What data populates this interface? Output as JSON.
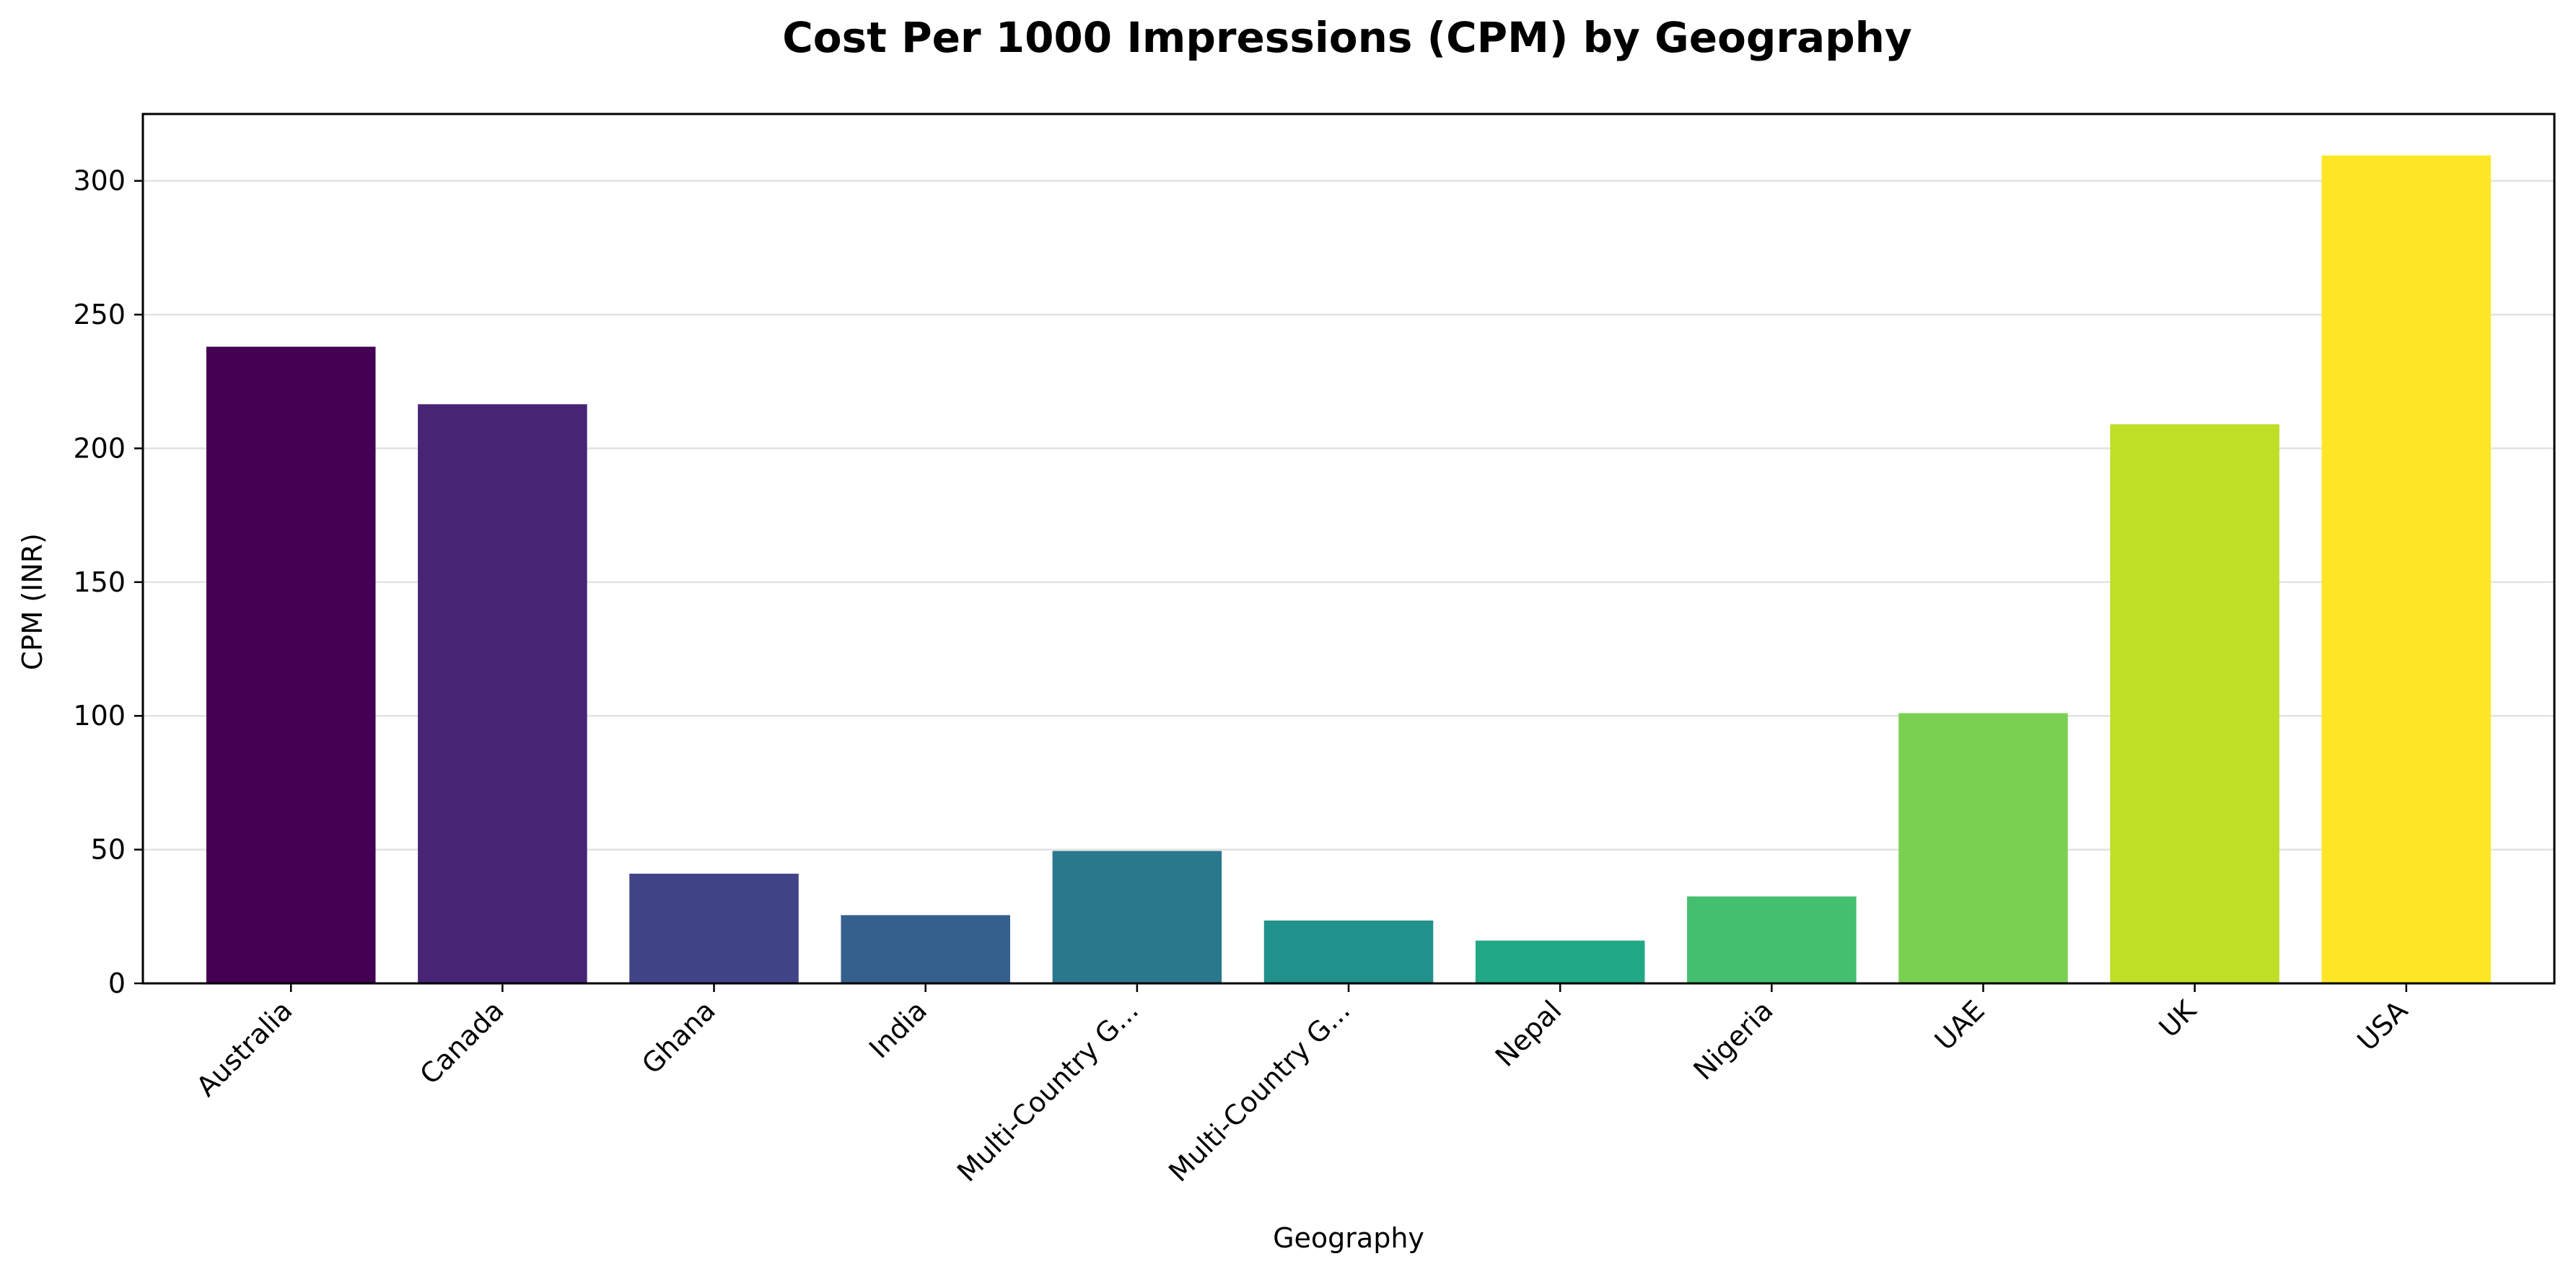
{
  "chart_data": {
    "type": "bar",
    "title": "Cost Per 1000 Impressions (CPM) by Geography",
    "xlabel": "Geography",
    "ylabel": "CPM (INR)",
    "categories": [
      "Australia",
      "Canada",
      "Ghana",
      "India",
      "Multi-Country G...",
      "Multi-Country G...",
      "Nepal",
      "Nigeria",
      "UAE",
      "UK",
      "USA"
    ],
    "values": [
      238,
      216.5,
      41,
      25.5,
      49.5,
      23.5,
      16,
      32.5,
      101,
      209,
      309.5
    ],
    "colors": [
      "#440154",
      "#482475",
      "#414487",
      "#355f8d",
      "#2a788e",
      "#21918c",
      "#22a884",
      "#44bf70",
      "#7ad151",
      "#bddf26",
      "#fde725"
    ],
    "ylim": [
      0,
      325
    ],
    "yticks": [
      0,
      50,
      100,
      150,
      200,
      250,
      300
    ],
    "grid": "y-axis",
    "legend": "none"
  }
}
